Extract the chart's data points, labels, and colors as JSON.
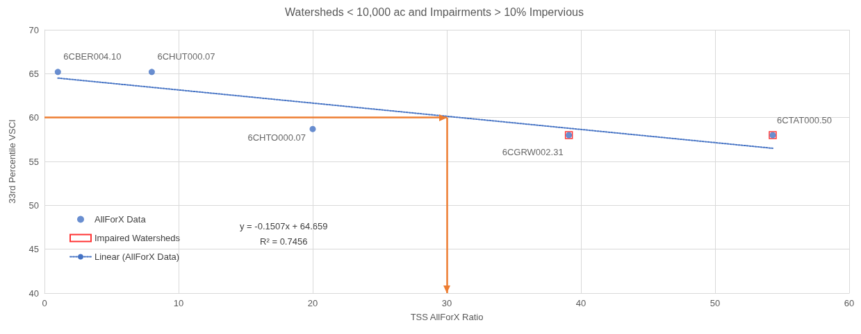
{
  "chart_data": {
    "type": "scatter",
    "title": "Watersheds < 10,000 ac and Impairments > 10% Impervious",
    "xlabel": "TSS AllForX Ratio",
    "ylabel": "33rd Percentile VSCI",
    "xlim": [
      0,
      60
    ],
    "xticks": [
      0,
      10,
      20,
      30,
      40,
      50,
      60
    ],
    "ylim": [
      40,
      70
    ],
    "yticks": [
      40,
      45,
      50,
      55,
      60,
      65,
      70
    ],
    "grid": true,
    "legend": "left",
    "series": [
      {
        "name": "AllForX Data",
        "marker": "circle",
        "color": "#4472c4",
        "x": [
          1,
          8,
          20,
          39.1,
          54.3
        ],
        "values": [
          65.2,
          65.2,
          58.7,
          58,
          58
        ]
      },
      {
        "name": "Impaired Watersheds",
        "marker": "square",
        "color": "#ff0000",
        "x": [
          39.1,
          54.3
        ],
        "values": [
          58,
          58
        ]
      },
      {
        "name": "Linear (AllForX Data)",
        "type": "line",
        "marker": "none",
        "line_style": "dotted",
        "color": "#4472c4",
        "x": [
          1,
          54.3
        ],
        "values": [
          64.5,
          56.5
        ]
      }
    ],
    "ref_lines": [
      {
        "axis": "y",
        "value": 60,
        "color": "#ed7d31"
      },
      {
        "axis": "x",
        "value": 30,
        "color": "#ed7d31"
      }
    ],
    "annotations": [
      {
        "text": "6CBER004.10",
        "x": 1,
        "y": 65.2
      },
      {
        "text": "6CHUT000.07",
        "x": 8,
        "y": 65.2
      },
      {
        "text": "6CHTO000.07",
        "x": 20,
        "y": 58.7
      },
      {
        "text": "6CGRW002.31",
        "x": 39.1,
        "y": 58
      },
      {
        "text": "6CTAT000.50",
        "x": 54.3,
        "y": 58
      },
      "y = -0.1507x + 64.659\nR² = 0.7456"
    ]
  }
}
